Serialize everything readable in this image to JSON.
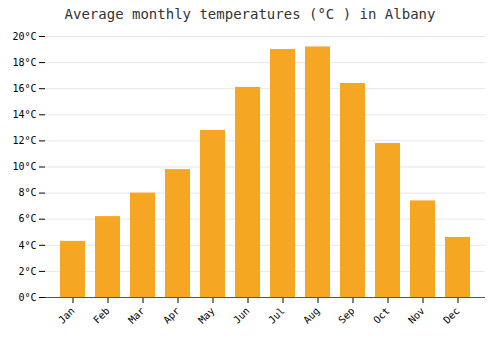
{
  "chart_data": {
    "type": "bar",
    "title": "Average monthly temperatures (°C ) in Albany",
    "categories": [
      "Jan",
      "Feb",
      "Mar",
      "Apr",
      "May",
      "Jun",
      "Jul",
      "Aug",
      "Sep",
      "Oct",
      "Nov",
      "Dec"
    ],
    "values": [
      4.3,
      6.2,
      8.0,
      9.8,
      12.8,
      16.1,
      19.0,
      19.2,
      16.4,
      11.8,
      7.4,
      4.6
    ],
    "color": "#F5A623",
    "ylim": [
      0,
      20
    ],
    "yticks": [
      {
        "value": 0,
        "label": "0°C"
      },
      {
        "value": 2,
        "label": "2°C"
      },
      {
        "value": 4,
        "label": "4°C"
      },
      {
        "value": 6,
        "label": "6°C"
      },
      {
        "value": 8,
        "label": "8°C"
      },
      {
        "value": 10,
        "label": "10°C"
      },
      {
        "value": 12,
        "label": "12°C"
      },
      {
        "value": 14,
        "label": "14°C"
      },
      {
        "value": 16,
        "label": "16°C"
      },
      {
        "value": 18,
        "label": "18°C"
      },
      {
        "value": 20,
        "label": "20°C"
      }
    ],
    "grid": true
  }
}
